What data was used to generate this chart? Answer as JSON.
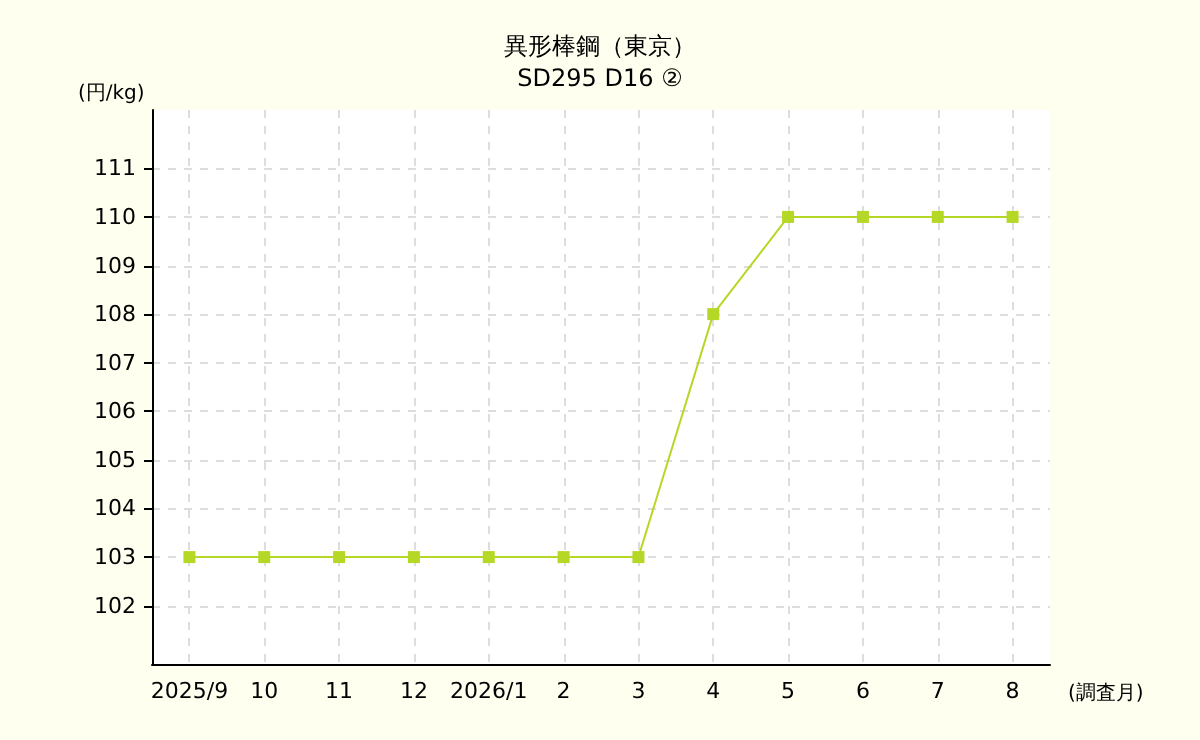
{
  "chart_data": {
    "type": "line",
    "title": "異形棒鋼（東京）",
    "subtitle": "SD295 D16 ②",
    "ylabel": "(円/kg)",
    "xlabel": "(調査月)",
    "categories": [
      "2025/9",
      "10",
      "11",
      "12",
      "2026/1",
      "2",
      "3",
      "4",
      "5",
      "6",
      "7",
      "8"
    ],
    "series": [
      {
        "color": "#b5d827",
        "values": [
          103,
          103,
          103,
          103,
          103,
          103,
          103,
          108,
          110,
          110,
          110,
          110
        ]
      }
    ],
    "ylim": [
      100.8,
      112.2
    ],
    "yticks": [
      102,
      103,
      104,
      105,
      106,
      107,
      108,
      109,
      110,
      111
    ],
    "grid": true,
    "marker": "square",
    "line_style": "solid"
  }
}
